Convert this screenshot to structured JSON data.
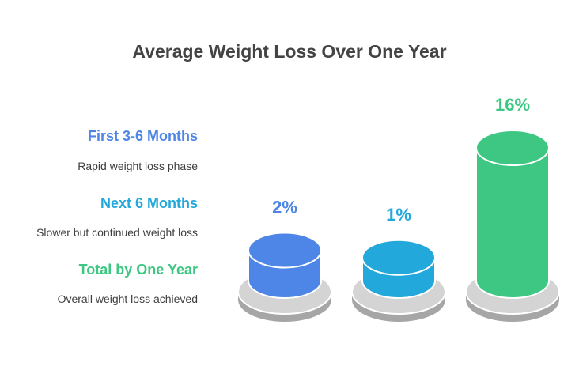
{
  "chart_data": {
    "type": "bar",
    "title": "Average Weight Loss Over One Year",
    "categories": [
      "First 3-6 Months",
      "Next 6 Months",
      "Total by One Year"
    ],
    "descriptions": [
      "Rapid weight loss phase",
      "Slower but continued weight loss",
      "Overall weight loss achieved"
    ],
    "values": [
      2,
      1,
      16
    ],
    "value_labels": [
      "2%",
      "1%",
      "16%"
    ],
    "colors": [
      "#4d86e6",
      "#23a8dc",
      "#3ec782"
    ],
    "xlabel": "",
    "ylabel": "",
    "grid": false,
    "legend_placement": "left"
  }
}
